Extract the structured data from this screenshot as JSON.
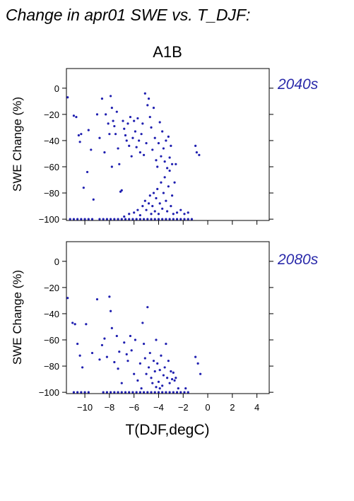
{
  "header": {
    "title": "Change in apr01 SWE vs. T_DJF:",
    "scenario": "A1B"
  },
  "colors": {
    "points": "#1f1fb0",
    "period_label": "#2a2aaa"
  },
  "chart_data": [
    {
      "type": "scatter",
      "period": "2040s",
      "xlabel": "",
      "ylabel": "SWE Change (%)",
      "xlim": [
        -11.5,
        5
      ],
      "ylim": [
        -101,
        15
      ],
      "x_ticks": [
        "−10",
        "−8",
        "−6",
        "−4",
        "−2",
        "0",
        "2",
        "4"
      ],
      "y_ticks": [
        "−100",
        "−80",
        "−60",
        "−40",
        "−20",
        "0"
      ],
      "x_tick_values": [
        -10,
        -8,
        -6,
        -4,
        -2,
        0,
        2,
        4
      ],
      "y_tick_values": [
        -100,
        -80,
        -60,
        -40,
        -20,
        0
      ],
      "show_x_tick_labels": false,
      "points": [
        [
          -11.4,
          -7
        ],
        [
          -10.9,
          -21
        ],
        [
          -10.7,
          -22
        ],
        [
          -10.5,
          -36
        ],
        [
          -10.4,
          -41
        ],
        [
          -10.3,
          -35
        ],
        [
          -10.1,
          -76
        ],
        [
          -9.8,
          -64
        ],
        [
          -9.7,
          -32
        ],
        [
          -9.5,
          -47
        ],
        [
          -9.3,
          -85
        ],
        [
          -9.0,
          -20
        ],
        [
          -8.8,
          -38
        ],
        [
          -8.6,
          -8
        ],
        [
          -8.4,
          -49
        ],
        [
          -8.3,
          -20
        ],
        [
          -8.1,
          -27
        ],
        [
          -8.0,
          -35
        ],
        [
          -7.9,
          -6
        ],
        [
          -7.8,
          -15
        ],
        [
          -7.8,
          -60
        ],
        [
          -7.7,
          -25
        ],
        [
          -7.6,
          -29
        ],
        [
          -7.5,
          -35
        ],
        [
          -7.4,
          -18
        ],
        [
          -7.3,
          -46
        ],
        [
          -7.2,
          -58
        ],
        [
          -7.1,
          -79
        ],
        [
          -7.0,
          -78
        ],
        [
          -6.9,
          -25
        ],
        [
          -6.8,
          -31
        ],
        [
          -6.7,
          -36
        ],
        [
          -6.6,
          -40
        ],
        [
          -6.5,
          -27
        ],
        [
          -6.4,
          -44
        ],
        [
          -6.3,
          -22
        ],
        [
          -6.2,
          -52
        ],
        [
          -6.1,
          -38
        ],
        [
          -6.0,
          -25
        ],
        [
          -5.9,
          -33
        ],
        [
          -5.8,
          -45
        ],
        [
          -5.7,
          -23
        ],
        [
          -5.6,
          -40
        ],
        [
          -5.5,
          -49
        ],
        [
          -5.4,
          -35
        ],
        [
          -5.3,
          -27
        ],
        [
          -5.2,
          -51
        ],
        [
          -5.1,
          -4
        ],
        [
          -5.0,
          -42
        ],
        [
          -4.9,
          -13
        ],
        [
          -4.8,
          -8
        ],
        [
          -4.7,
          -22
        ],
        [
          -4.6,
          -30
        ],
        [
          -4.5,
          -47
        ],
        [
          -4.4,
          -15
        ],
        [
          -4.3,
          -38
        ],
        [
          -4.2,
          -55
        ],
        [
          -4.1,
          -60
        ],
        [
          -4.0,
          -42
        ],
        [
          -3.9,
          -26
        ],
        [
          -3.8,
          -52
        ],
        [
          -3.7,
          -33
        ],
        [
          -3.6,
          -46
        ],
        [
          -3.5,
          -56
        ],
        [
          -3.4,
          -40
        ],
        [
          -3.3,
          -61
        ],
        [
          -3.2,
          -37
        ],
        [
          -3.1,
          -53
        ],
        [
          -3.0,
          -44
        ],
        [
          -2.9,
          -58
        ],
        [
          -2.6,
          -58
        ],
        [
          -1.0,
          -44
        ],
        [
          -0.9,
          -49
        ],
        [
          -0.7,
          -51
        ],
        [
          -6.8,
          -98
        ],
        [
          -6.4,
          -96
        ],
        [
          -6.0,
          -95
        ],
        [
          -5.7,
          -93
        ],
        [
          -5.5,
          -97
        ],
        [
          -5.3,
          -90
        ],
        [
          -5.1,
          -86
        ],
        [
          -5.0,
          -93
        ],
        [
          -4.8,
          -88
        ],
        [
          -4.7,
          -82
        ],
        [
          -4.6,
          -96
        ],
        [
          -4.5,
          -90
        ],
        [
          -4.4,
          -80
        ],
        [
          -4.3,
          -94
        ],
        [
          -4.2,
          -84
        ],
        [
          -4.1,
          -77
        ],
        [
          -4.0,
          -96
        ],
        [
          -3.9,
          -88
        ],
        [
          -3.8,
          -72
        ],
        [
          -3.7,
          -92
        ],
        [
          -3.6,
          -80
        ],
        [
          -3.5,
          -68
        ],
        [
          -3.4,
          -86
        ],
        [
          -3.3,
          -94
        ],
        [
          -3.2,
          -75
        ],
        [
          -3.1,
          -63
        ],
        [
          -3.0,
          -90
        ],
        [
          -2.9,
          -82
        ],
        [
          -2.8,
          -96
        ],
        [
          -2.7,
          -72
        ],
        [
          -2.5,
          -95
        ],
        [
          -2.2,
          -93
        ],
        [
          -1.9,
          -96
        ],
        [
          -1.6,
          -95
        ],
        [
          -11.2,
          -100
        ],
        [
          -10.9,
          -100
        ],
        [
          -10.6,
          -100
        ],
        [
          -10.3,
          -100
        ],
        [
          -10.0,
          -100
        ],
        [
          -9.7,
          -100
        ],
        [
          -9.4,
          -100
        ],
        [
          -8.8,
          -100
        ],
        [
          -8.5,
          -100
        ],
        [
          -8.2,
          -100
        ],
        [
          -7.9,
          -100
        ],
        [
          -7.6,
          -100
        ],
        [
          -7.3,
          -100
        ],
        [
          -7.0,
          -100
        ],
        [
          -6.7,
          -100
        ],
        [
          -6.4,
          -100
        ],
        [
          -6.1,
          -100
        ],
        [
          -5.8,
          -100
        ],
        [
          -5.5,
          -100
        ],
        [
          -5.2,
          -100
        ],
        [
          -4.9,
          -100
        ],
        [
          -4.6,
          -100
        ],
        [
          -4.3,
          -100
        ],
        [
          -4.0,
          -100
        ],
        [
          -3.7,
          -100
        ],
        [
          -3.4,
          -100
        ],
        [
          -3.1,
          -100
        ],
        [
          -2.8,
          -100
        ],
        [
          -2.5,
          -100
        ],
        [
          -2.2,
          -100
        ],
        [
          -1.9,
          -100
        ],
        [
          -1.6,
          -100
        ],
        [
          -1.3,
          -100
        ]
      ]
    },
    {
      "type": "scatter",
      "period": "2080s",
      "xlabel": "T(DJF,degC)",
      "ylabel": "SWE Change (%)",
      "xlim": [
        -11.5,
        5
      ],
      "ylim": [
        -101,
        15
      ],
      "x_ticks": [
        "−10",
        "−8",
        "−6",
        "−4",
        "−2",
        "0",
        "2",
        "4"
      ],
      "y_ticks": [
        "−100",
        "−80",
        "−60",
        "−40",
        "−20",
        "0"
      ],
      "x_tick_values": [
        -10,
        -8,
        -6,
        -4,
        -2,
        0,
        2,
        4
      ],
      "y_tick_values": [
        -100,
        -80,
        -60,
        -40,
        -20,
        0
      ],
      "show_x_tick_labels": true,
      "points": [
        [
          -11.4,
          -28
        ],
        [
          -11.0,
          -47
        ],
        [
          -10.8,
          -48
        ],
        [
          -10.6,
          -63
        ],
        [
          -10.4,
          -72
        ],
        [
          -10.2,
          -81
        ],
        [
          -9.9,
          -48
        ],
        [
          -9.4,
          -70
        ],
        [
          -9.0,
          -29
        ],
        [
          -8.8,
          -75
        ],
        [
          -8.6,
          -64
        ],
        [
          -8.4,
          -59
        ],
        [
          -8.2,
          -73
        ],
        [
          -8.0,
          -27
        ],
        [
          -7.9,
          -38
        ],
        [
          -7.8,
          -51
        ],
        [
          -7.6,
          -77
        ],
        [
          -7.4,
          -57
        ],
        [
          -7.3,
          -82
        ],
        [
          -7.2,
          -69
        ],
        [
          -7.0,
          -93
        ],
        [
          -6.8,
          -62
        ],
        [
          -6.6,
          -71
        ],
        [
          -6.5,
          -76
        ],
        [
          -6.3,
          -57
        ],
        [
          -6.2,
          -68
        ],
        [
          -6.0,
          -86
        ],
        [
          -5.9,
          -60
        ],
        [
          -5.7,
          -91
        ],
        [
          -5.5,
          -78
        ],
        [
          -5.3,
          -47
        ],
        [
          -5.2,
          -63
        ],
        [
          -5.1,
          -74
        ],
        [
          -5.0,
          -86
        ],
        [
          -4.9,
          -35
        ],
        [
          -4.8,
          -81
        ],
        [
          -4.7,
          -70
        ],
        [
          -4.6,
          -89
        ],
        [
          -4.5,
          -93
        ],
        [
          -4.4,
          -76
        ],
        [
          -4.3,
          -84
        ],
        [
          -4.2,
          -60
        ],
        [
          -4.1,
          -78
        ],
        [
          -4.0,
          -92
        ],
        [
          -3.9,
          -83
        ],
        [
          -3.8,
          -72
        ],
        [
          -3.7,
          -95
        ],
        [
          -3.6,
          -87
        ],
        [
          -3.5,
          -81
        ],
        [
          -3.4,
          -63
        ],
        [
          -3.3,
          -89
        ],
        [
          -3.2,
          -76
        ],
        [
          -3.1,
          -93
        ],
        [
          -3.0,
          -84
        ],
        [
          -2.9,
          -90
        ],
        [
          -2.8,
          -85
        ],
        [
          -2.7,
          -91
        ],
        [
          -2.6,
          -89
        ],
        [
          -2.4,
          -97
        ],
        [
          -1.8,
          -97
        ],
        [
          -1.0,
          -73
        ],
        [
          -0.8,
          -78
        ],
        [
          -0.6,
          -86
        ],
        [
          -3.9,
          -97
        ],
        [
          -4.2,
          -96
        ],
        [
          -5.4,
          -97
        ],
        [
          -10.9,
          -100
        ],
        [
          -10.6,
          -100
        ],
        [
          -10.3,
          -100
        ],
        [
          -10.0,
          -100
        ],
        [
          -9.7,
          -100
        ],
        [
          -8.5,
          -100
        ],
        [
          -8.2,
          -100
        ],
        [
          -7.9,
          -100
        ],
        [
          -7.6,
          -100
        ],
        [
          -7.3,
          -100
        ],
        [
          -7.0,
          -100
        ],
        [
          -6.7,
          -100
        ],
        [
          -6.4,
          -100
        ],
        [
          -6.1,
          -100
        ],
        [
          -5.8,
          -100
        ],
        [
          -5.5,
          -100
        ],
        [
          -5.2,
          -100
        ],
        [
          -4.9,
          -100
        ],
        [
          -4.6,
          -100
        ],
        [
          -4.3,
          -100
        ],
        [
          -4.0,
          -100
        ],
        [
          -3.7,
          -100
        ],
        [
          -3.4,
          -100
        ],
        [
          -3.1,
          -100
        ],
        [
          -2.8,
          -100
        ],
        [
          -2.5,
          -100
        ],
        [
          -2.2,
          -100
        ],
        [
          -1.9,
          -100
        ],
        [
          -1.6,
          -100
        ]
      ]
    }
  ]
}
